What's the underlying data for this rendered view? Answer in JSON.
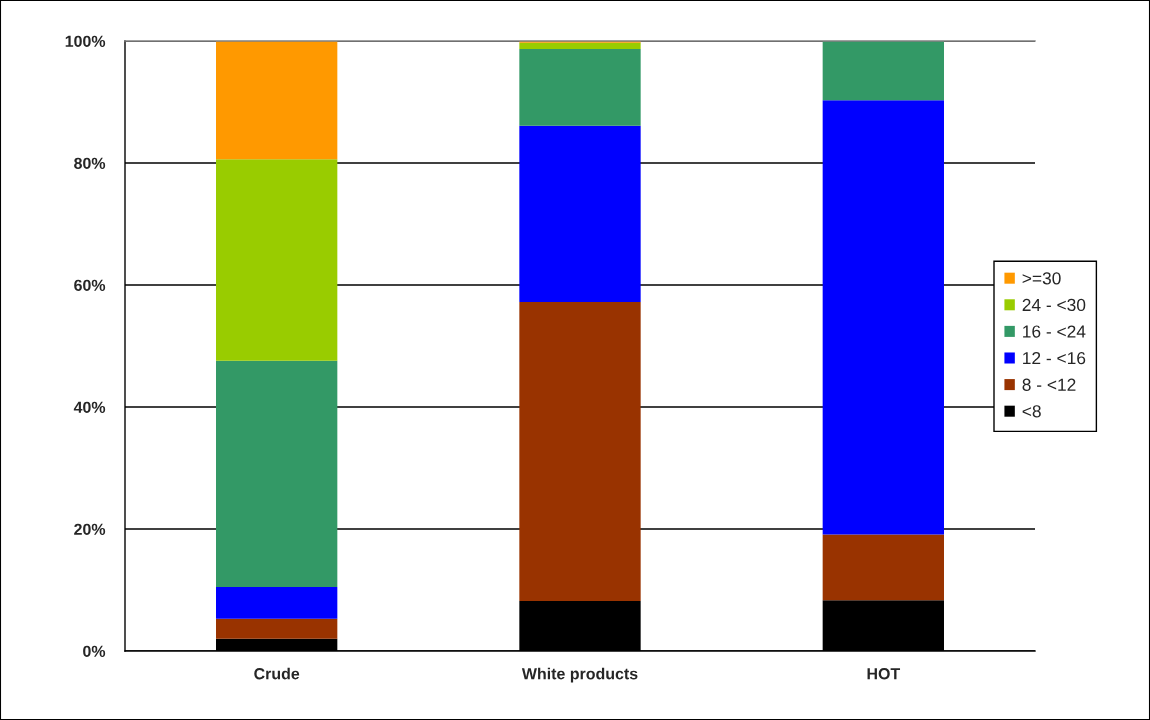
{
  "chart_data": {
    "type": "bar",
    "stacked": true,
    "categories": [
      "Crude",
      "White products",
      "HOT"
    ],
    "series": [
      {
        "name": "<8",
        "color": "#000000",
        "values": [
          2.0,
          8.2,
          8.3
        ]
      },
      {
        "name": "8 - <12",
        "color": "#993300",
        "values": [
          3.3,
          49.0,
          10.8
        ]
      },
      {
        "name": "12 - <16",
        "color": "#0000ff",
        "values": [
          5.2,
          28.9,
          71.2
        ]
      },
      {
        "name": "16 - <24",
        "color": "#339966",
        "values": [
          37.1,
          12.6,
          9.7
        ]
      },
      {
        "name": "24 - <30",
        "color": "#99cc00",
        "values": [
          33.0,
          1.0,
          0
        ]
      },
      {
        "name": ">=30",
        "color": "#ff9900",
        "values": [
          19.4,
          0.3,
          0
        ]
      }
    ],
    "ylim": [
      0,
      100
    ],
    "yticks": [
      {
        "value": 0,
        "label": "0%"
      },
      {
        "value": 20,
        "label": "20%"
      },
      {
        "value": 40,
        "label": "40%"
      },
      {
        "value": 60,
        "label": "60%"
      },
      {
        "value": 80,
        "label": "80%"
      },
      {
        "value": 100,
        "label": "100%"
      }
    ],
    "grid": "y",
    "legend": "right"
  }
}
